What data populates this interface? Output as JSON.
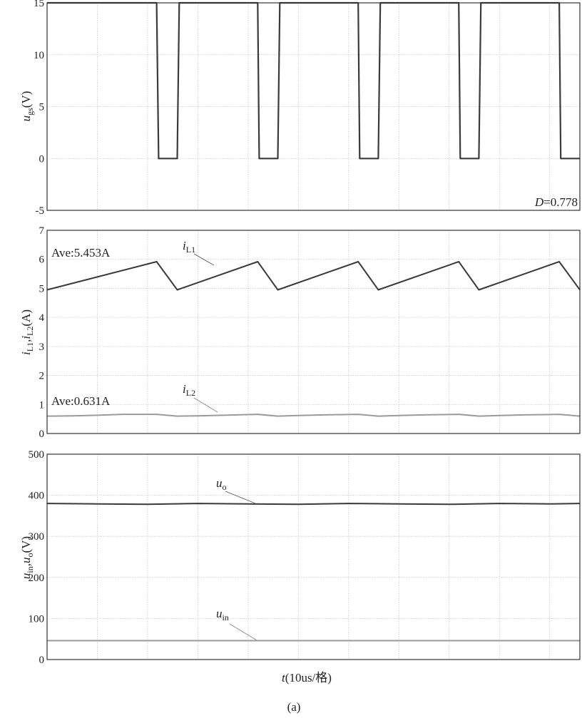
{
  "figure_caption": "(a)",
  "time_axis": {
    "label_italic": "t",
    "label_rest": "(10us/格)",
    "divisions": 10
  },
  "colors": {
    "dark": "#3a3a3a",
    "light": "#9a9a9a"
  },
  "chart_data": [
    {
      "type": "line",
      "ylabel_main": "u",
      "ylabel_sub": "gs",
      "ylabel_unit": "(V)",
      "ylim": [
        -5,
        15
      ],
      "yticks": [
        -5,
        0,
        5,
        10,
        15
      ],
      "grid": true,
      "annotation": {
        "italic": "D",
        "rest": "=0.778"
      },
      "series": [
        {
          "color": "dark",
          "x": [
            0,
            0.06,
            2.18,
            2.22,
            2.59,
            2.63,
            4.19,
            4.22,
            4.59,
            4.63,
            6.19,
            6.22,
            6.59,
            6.63,
            8.19,
            8.22,
            8.59,
            8.63,
            10.19,
            10.22,
            10.6
          ],
          "y": [
            15,
            15,
            15,
            0,
            0,
            15,
            15,
            0,
            0,
            15,
            15,
            0,
            0,
            15,
            15,
            0,
            0,
            15,
            15,
            0,
            0
          ]
        }
      ]
    },
    {
      "type": "line",
      "ylabel_main_1": "i",
      "ylabel_sub_1": "L1",
      "ylabel_sep": ",",
      "ylabel_main_2": "i",
      "ylabel_sub_2": "L2",
      "ylabel_unit": "(A)",
      "ylim": [
        0,
        7
      ],
      "yticks": [
        0,
        1,
        2,
        3,
        4,
        5,
        6,
        7
      ],
      "grid": true,
      "annotations": [
        {
          "text": "Ave:5.453A"
        },
        {
          "text": "Ave:0.631A"
        }
      ],
      "series": [
        {
          "name_main": "i",
          "name_sub": "L1",
          "color": "dark",
          "x": [
            0,
            2.18,
            2.59,
            4.19,
            4.59,
            6.19,
            6.59,
            8.19,
            8.59,
            10.19,
            10.6
          ],
          "y": [
            4.95,
            5.92,
            4.95,
            5.92,
            4.95,
            5.92,
            4.95,
            5.92,
            4.95,
            5.92,
            4.95
          ]
        },
        {
          "name_main": "i",
          "name_sub": "L2",
          "color": "light",
          "x": [
            0,
            0.5,
            1.0,
            1.5,
            2.18,
            2.59,
            3.0,
            3.5,
            4.19,
            4.59,
            5.0,
            5.5,
            6.19,
            6.59,
            7.0,
            7.5,
            8.19,
            8.59,
            9.0,
            9.5,
            10.19,
            10.6
          ],
          "y": [
            0.6,
            0.61,
            0.63,
            0.66,
            0.66,
            0.6,
            0.61,
            0.63,
            0.66,
            0.6,
            0.62,
            0.64,
            0.66,
            0.6,
            0.62,
            0.64,
            0.66,
            0.6,
            0.62,
            0.64,
            0.66,
            0.6
          ]
        }
      ]
    },
    {
      "type": "line",
      "ylabel_main_1": "u",
      "ylabel_sub_1": "in",
      "ylabel_sep": ",",
      "ylabel_main_2": "u",
      "ylabel_sub_2": "o",
      "ylabel_unit": "(V)",
      "ylim": [
        0,
        500
      ],
      "yticks": [
        0,
        100,
        200,
        300,
        400,
        500
      ],
      "grid": true,
      "series": [
        {
          "name_main": "u",
          "name_sub": "o",
          "color": "dark",
          "x": [
            0,
            1,
            2,
            3,
            4,
            5,
            6,
            7,
            8,
            9,
            10,
            10.6
          ],
          "y": [
            380,
            379,
            378,
            380,
            379,
            378,
            380,
            379,
            378,
            380,
            379,
            380
          ]
        },
        {
          "name_main": "u",
          "name_sub": "in",
          "color": "light",
          "x": [
            0,
            10.6
          ],
          "y": [
            46,
            46
          ]
        }
      ]
    }
  ]
}
